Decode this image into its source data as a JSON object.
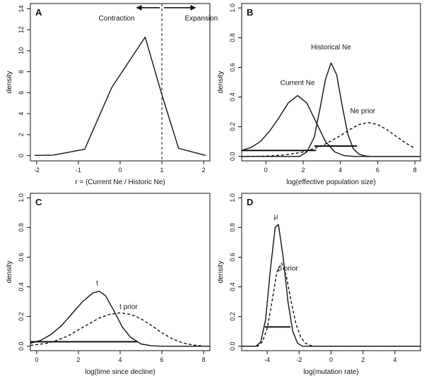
{
  "chart_data": [
    {
      "panel": "A",
      "type": "line",
      "xlabel": "r = (Current Ne / Historic Ne)",
      "ylabel": "density",
      "xlim": [
        -2.15,
        2.15
      ],
      "ylim": [
        -0.5,
        14.5
      ],
      "xticks": [
        -2,
        -1,
        0,
        1,
        2
      ],
      "yticks": [
        0,
        2,
        4,
        6,
        8,
        10,
        12,
        14
      ],
      "series": [
        {
          "style": "solid",
          "x": [
            -2.05,
            -1.6,
            -0.85,
            -0.2,
            0.6,
            1.0,
            1.4,
            2.05
          ],
          "y": [
            0.02,
            0.05,
            0.6,
            6.5,
            11.3,
            5.8,
            0.7,
            0.02
          ]
        }
      ],
      "vlines": [
        {
          "x": 1.0,
          "style": "dashed"
        }
      ],
      "annotations": [
        {
          "text": "Contraction",
          "x": 0.35,
          "y": 12.9
        },
        {
          "text": "Expansion",
          "x": 1.55,
          "y": 12.9
        }
      ],
      "arrows": [
        {
          "from": [
            0.95,
            14.1
          ],
          "to": [
            0.4,
            14.1
          ]
        },
        {
          "from": [
            1.05,
            14.1
          ],
          "to": [
            1.8,
            14.1
          ]
        }
      ]
    },
    {
      "panel": "B",
      "type": "line",
      "xlabel": "log(effective population size)",
      "ylabel": "density",
      "xlim": [
        -1.3,
        8.3
      ],
      "ylim": [
        -0.03,
        1.03
      ],
      "xticks": [
        0,
        2,
        4,
        6,
        8
      ],
      "yticks": [
        0.0,
        0.2,
        0.4,
        0.6,
        0.8,
        1.0
      ],
      "series": [
        {
          "name": "Current Ne",
          "style": "solid",
          "x": [
            -1.3,
            -0.8,
            -0.3,
            0.2,
            0.7,
            1.2,
            1.7,
            2.2,
            2.7,
            3.2,
            3.7,
            4.2,
            4.7,
            8.3
          ],
          "y": [
            0.04,
            0.06,
            0.1,
            0.17,
            0.26,
            0.36,
            0.41,
            0.36,
            0.23,
            0.1,
            0.03,
            0.005,
            0.0,
            0.0
          ]
        },
        {
          "name": "Historical Ne",
          "style": "solid",
          "x": [
            -1.3,
            1.8,
            2.2,
            2.6,
            2.9,
            3.2,
            3.5,
            3.8,
            4.1,
            4.4,
            4.7,
            5.0,
            5.3,
            5.6,
            8.3
          ],
          "y": [
            0.0,
            0.0,
            0.03,
            0.13,
            0.32,
            0.52,
            0.63,
            0.55,
            0.34,
            0.15,
            0.05,
            0.015,
            0.004,
            0.0,
            0.0
          ]
        },
        {
          "name": "Ne prior",
          "style": "dashed",
          "x": [
            -1.3,
            0.0,
            1.0,
            2.0,
            3.0,
            4.0,
            4.5,
            5.0,
            5.5,
            6.0,
            6.5,
            7.0,
            7.5,
            8.0
          ],
          "y": [
            0.0,
            0.002,
            0.01,
            0.03,
            0.07,
            0.14,
            0.18,
            0.215,
            0.228,
            0.215,
            0.18,
            0.135,
            0.09,
            0.055
          ]
        }
      ],
      "hlines": [
        {
          "x1": -1.3,
          "x2": 2.7,
          "y": 0.04
        },
        {
          "x1": 2.6,
          "x2": 4.9,
          "y": 0.07
        }
      ],
      "annotations": [
        {
          "text": "Historical Ne",
          "x": 3.5,
          "y": 0.72
        },
        {
          "text": "Current Ne",
          "x": 1.7,
          "y": 0.48
        },
        {
          "text": "Ne prior",
          "x": 5.2,
          "y": 0.29
        }
      ]
    },
    {
      "panel": "C",
      "type": "line",
      "xlabel": "log(time since decline)",
      "ylabel": "density",
      "xlim": [
        -0.3,
        8.3
      ],
      "ylim": [
        -0.03,
        1.03
      ],
      "xticks": [
        0,
        2,
        4,
        6,
        8
      ],
      "yticks": [
        0.0,
        0.2,
        0.4,
        0.6,
        0.8,
        1.0
      ],
      "series": [
        {
          "name": "t",
          "style": "solid",
          "x": [
            -0.3,
            0.2,
            0.7,
            1.2,
            1.7,
            2.2,
            2.7,
            3.0,
            3.3,
            3.7,
            4.1,
            4.5,
            5.0,
            5.5,
            6.0,
            8.3
          ],
          "y": [
            0.02,
            0.04,
            0.08,
            0.14,
            0.22,
            0.3,
            0.36,
            0.37,
            0.34,
            0.24,
            0.13,
            0.06,
            0.015,
            0.003,
            0.0,
            0.0
          ]
        },
        {
          "name": "t prior",
          "style": "dashed",
          "x": [
            -0.3,
            0.5,
            1.0,
            1.5,
            2.0,
            2.5,
            3.0,
            3.5,
            4.0,
            4.5,
            5.0,
            5.5,
            6.0,
            6.5,
            7.0,
            7.5,
            8.0
          ],
          "y": [
            0.005,
            0.02,
            0.04,
            0.07,
            0.11,
            0.15,
            0.19,
            0.215,
            0.225,
            0.215,
            0.185,
            0.14,
            0.09,
            0.05,
            0.022,
            0.008,
            0.002
          ]
        }
      ],
      "hlines": [
        {
          "x1": -0.3,
          "x2": 4.8,
          "y": 0.03
        }
      ],
      "annotations": [
        {
          "text": "t",
          "x": 2.9,
          "y": 0.41
        },
        {
          "text": "t prior",
          "x": 4.4,
          "y": 0.25
        }
      ]
    },
    {
      "panel": "D",
      "type": "line",
      "xlabel": "log(mutation rate)",
      "ylabel": "density",
      "xlim": [
        -5.6,
        5.6
      ],
      "ylim": [
        -0.03,
        1.03
      ],
      "xticks": [
        -4,
        -2,
        0,
        2,
        4
      ],
      "yticks": [
        0.0,
        0.2,
        0.4,
        0.6,
        0.8,
        1.0
      ],
      "series": [
        {
          "name": "μ",
          "style": "solid",
          "x": [
            -5.6,
            -4.7,
            -4.4,
            -4.1,
            -3.8,
            -3.5,
            -3.3,
            -3.0,
            -2.7,
            -2.4,
            -2.1,
            -1.8,
            5.6
          ],
          "y": [
            0.0,
            0.0,
            0.03,
            0.18,
            0.52,
            0.8,
            0.82,
            0.6,
            0.3,
            0.1,
            0.02,
            0.0,
            0.0
          ]
        },
        {
          "name": "μ prior",
          "style": "dashed",
          "x": [
            -5.6,
            -4.6,
            -4.3,
            -4.0,
            -3.7,
            -3.4,
            -3.1,
            -2.8,
            -2.5,
            -2.2,
            -1.9,
            -1.6,
            -1.3,
            -1.0,
            0.0,
            5.0
          ],
          "y": [
            0.0,
            0.0,
            0.03,
            0.12,
            0.3,
            0.5,
            0.56,
            0.47,
            0.3,
            0.15,
            0.06,
            0.02,
            0.005,
            0.0,
            0.0,
            0.0
          ]
        }
      ],
      "hlines": [
        {
          "x1": -4.15,
          "x2": -2.55,
          "y": 0.13
        }
      ],
      "annotations": [
        {
          "text": "μ",
          "x": -3.45,
          "y": 0.86
        },
        {
          "text": "μ prior",
          "x": -2.7,
          "y": 0.51
        }
      ]
    }
  ]
}
